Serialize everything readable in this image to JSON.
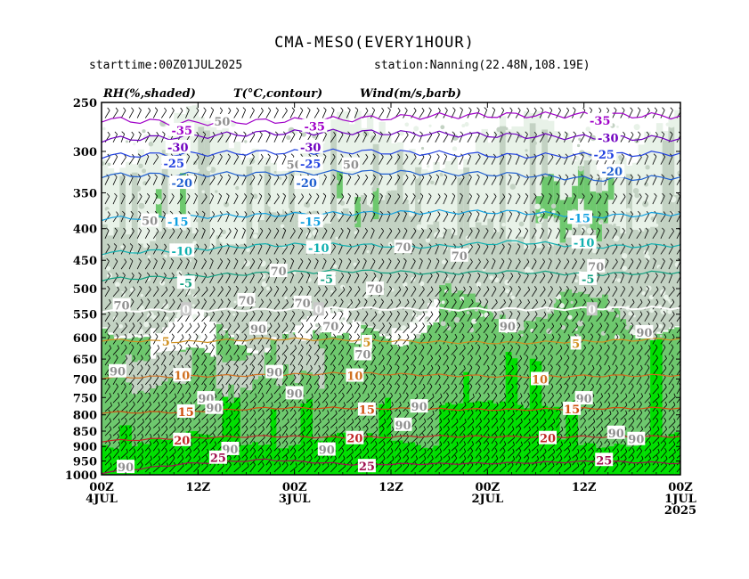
{
  "chart_data": {
    "type": "heatmap",
    "title": "CMA-MESO(EVERY1HOUR)",
    "subtitle_left": "starttime:00Z01JUL2025",
    "subtitle_right": "station:Nanning(22.48N,108.19E)",
    "panel_labels": {
      "rh": "RH(%,shaded)",
      "temp": "T(°C,contour)",
      "wind": "Wind(m/s,barb)"
    },
    "y_axis": {
      "ticks": [
        250,
        300,
        350,
        400,
        450,
        500,
        550,
        600,
        650,
        700,
        750,
        800,
        850,
        900,
        950,
        1000
      ],
      "labels": [
        "250",
        "300",
        "350",
        "400",
        "450",
        "500",
        "550",
        "600",
        "650",
        "700",
        "750",
        "800",
        "850",
        "900",
        "950",
        "1000"
      ],
      "range": [
        250,
        1000
      ],
      "inverted": true
    },
    "x_axis": {
      "direction": "time runs right-to-left",
      "ticks": [
        {
          "hours_before_end": 72,
          "label1": "00Z",
          "label2": "4JUL",
          "label3": ""
        },
        {
          "hours_before_end": 60,
          "label1": "12Z",
          "label2": "",
          "label3": ""
        },
        {
          "hours_before_end": 48,
          "label1": "00Z",
          "label2": "3JUL",
          "label3": ""
        },
        {
          "hours_before_end": 36,
          "label1": "12Z",
          "label2": "",
          "label3": ""
        },
        {
          "hours_before_end": 24,
          "label1": "00Z",
          "label2": "2JUL",
          "label3": ""
        },
        {
          "hours_before_end": 12,
          "label1": "12Z",
          "label2": "",
          "label3": ""
        },
        {
          "hours_before_end": 0,
          "label1": "00Z",
          "label2": "1JUL",
          "label3": "2025"
        }
      ]
    },
    "rh_colors": {
      "50": "#e8f2e8",
      "70": "#c3d2c3",
      "90": "#6ec86e",
      "95": "#00e000"
    },
    "temperature_contours": [
      {
        "label": "-35",
        "color": "#a000c8",
        "levels_hpa": [
          266,
          270,
          268,
          266,
          263,
          262,
          262,
          263
        ]
      },
      {
        "label": "-30",
        "color": "#7000c0",
        "levels_hpa": [
          287,
          284,
          280,
          279,
          281,
          283,
          285,
          286
        ]
      },
      {
        "label": "-25",
        "color": "#2040e0",
        "levels_hpa": [
          305,
          303,
          301,
          300,
          302,
          305,
          304,
          302
        ]
      },
      {
        "label": "-20",
        "color": "#2060d0",
        "levels_hpa": [
          328,
          327,
          326,
          324,
          325,
          327,
          333,
          330
        ]
      },
      {
        "label": "-15",
        "color": "#10a0e0",
        "levels_hpa": [
          385,
          383,
          380,
          378,
          376,
          376,
          382,
          378
        ]
      },
      {
        "label": "-10",
        "color": "#10b0b0",
        "levels_hpa": [
          438,
          433,
          425,
          425,
          428,
          420,
          428,
          425
        ]
      },
      {
        "label": "-5",
        "color": "#10a080",
        "levels_hpa": [
          483,
          478,
          472,
          468,
          472,
          470,
          474,
          470
        ]
      },
      {
        "label": "0",
        "color": "#ffffff",
        "levels_hpa": [
          543,
          542,
          541,
          538,
          540,
          540,
          538,
          537
        ]
      },
      {
        "label": "5",
        "color": "#d09020",
        "levels_hpa": [
          605,
          610,
          603,
          605,
          610,
          612,
          608,
          602
        ]
      },
      {
        "label": "10",
        "color": "#d07020",
        "levels_hpa": [
          697,
          693,
          690,
          685,
          690,
          694,
          692,
          690
        ]
      },
      {
        "label": "15",
        "color": "#d05010",
        "levels_hpa": [
          793,
          792,
          780,
          780,
          783,
          785,
          781,
          780
        ]
      },
      {
        "label": "20",
        "color": "#c02828",
        "levels_hpa": [
          882,
          872,
          866,
          871,
          866,
          868,
          868,
          867
        ]
      },
      {
        "label": "25",
        "color": "#a01050",
        "levels_hpa": [
          993,
          960,
          945,
          962,
          960,
          957,
          951,
          958
        ]
      }
    ],
    "contour_labels": [
      {
        "text": "-35",
        "color": "#a000c8",
        "h": 62,
        "p": 277
      },
      {
        "text": "-35",
        "color": "#a000c8",
        "h": 45.5,
        "p": 273
      },
      {
        "text": "-35",
        "color": "#a000c8",
        "h": 10,
        "p": 267
      },
      {
        "text": "-30",
        "color": "#7000c0",
        "h": 62.5,
        "p": 295
      },
      {
        "text": "-30",
        "color": "#7000c0",
        "h": 46,
        "p": 295
      },
      {
        "text": "-30",
        "color": "#7000c0",
        "h": 9,
        "p": 285
      },
      {
        "text": "-25",
        "color": "#2040e0",
        "h": 63,
        "p": 313
      },
      {
        "text": "-25",
        "color": "#2040e0",
        "h": 46,
        "p": 314
      },
      {
        "text": "-25",
        "color": "#2040e0",
        "h": 9.5,
        "p": 303
      },
      {
        "text": "-20",
        "color": "#2060d0",
        "h": 62,
        "p": 337
      },
      {
        "text": "-20",
        "color": "#2060d0",
        "h": 46.5,
        "p": 337
      },
      {
        "text": "-20",
        "color": "#2060d0",
        "h": 8.5,
        "p": 323
      },
      {
        "text": "-15",
        "color": "#10a0e0",
        "h": 62.5,
        "p": 389
      },
      {
        "text": "-15",
        "color": "#10a0e0",
        "h": 46,
        "p": 389
      },
      {
        "text": "-15",
        "color": "#10a0e0",
        "h": 12.5,
        "p": 384
      },
      {
        "text": "-10",
        "color": "#10b0b0",
        "h": 62,
        "p": 434
      },
      {
        "text": "-10",
        "color": "#10b0b0",
        "h": 45,
        "p": 429
      },
      {
        "text": "-10",
        "color": "#10b0b0",
        "h": 12,
        "p": 421
      },
      {
        "text": "-5",
        "color": "#10a080",
        "h": 61.5,
        "p": 489
      },
      {
        "text": "-5",
        "color": "#10a080",
        "h": 44,
        "p": 482
      },
      {
        "text": "-5",
        "color": "#10a080",
        "h": 11.5,
        "p": 482
      },
      {
        "text": "0",
        "color": "#ffffff",
        "h": 61.5,
        "p": 540
      },
      {
        "text": "0",
        "color": "#ffffff",
        "h": 45,
        "p": 540
      },
      {
        "text": "0",
        "color": "#ffffff",
        "h": 11,
        "p": 540
      },
      {
        "text": "5",
        "color": "#d09020",
        "h": 64,
        "p": 608
      },
      {
        "text": "5",
        "color": "#d09020",
        "h": 39,
        "p": 610
      },
      {
        "text": "5",
        "color": "#d09020",
        "h": 13,
        "p": 613
      },
      {
        "text": "10",
        "color": "#d07020",
        "h": 62,
        "p": 690
      },
      {
        "text": "10",
        "color": "#d07020",
        "h": 40.5,
        "p": 691
      },
      {
        "text": "10",
        "color": "#d07020",
        "h": 17.5,
        "p": 700
      },
      {
        "text": "15",
        "color": "#d05010",
        "h": 61.5,
        "p": 790
      },
      {
        "text": "15",
        "color": "#d05010",
        "h": 39,
        "p": 784
      },
      {
        "text": "15",
        "color": "#d05010",
        "h": 13.5,
        "p": 782
      },
      {
        "text": "20",
        "color": "#c02828",
        "h": 62,
        "p": 878
      },
      {
        "text": "20",
        "color": "#c02828",
        "h": 40.5,
        "p": 872
      },
      {
        "text": "20",
        "color": "#c02828",
        "h": 16.5,
        "p": 872
      },
      {
        "text": "25",
        "color": "#a01050",
        "h": 57.5,
        "p": 938
      },
      {
        "text": "25",
        "color": "#a01050",
        "h": 39,
        "p": 968
      },
      {
        "text": "25",
        "color": "#a01050",
        "h": 9.5,
        "p": 946
      }
    ],
    "rh_labels": [
      {
        "text": "50",
        "h": 57,
        "p": 268
      },
      {
        "text": "50",
        "h": 48,
        "p": 315
      },
      {
        "text": "50",
        "h": 41,
        "p": 315
      },
      {
        "text": "50",
        "h": 66,
        "p": 388
      },
      {
        "text": "70",
        "h": 69.5,
        "p": 532
      },
      {
        "text": "70",
        "h": 54,
        "p": 522
      },
      {
        "text": "70",
        "h": 50,
        "p": 468
      },
      {
        "text": "70",
        "h": 47,
        "p": 527
      },
      {
        "text": "70",
        "h": 43.5,
        "p": 575
      },
      {
        "text": "70",
        "h": 39.5,
        "p": 638
      },
      {
        "text": "70",
        "h": 38,
        "p": 500
      },
      {
        "text": "70",
        "h": 34.5,
        "p": 428
      },
      {
        "text": "70",
        "h": 27.5,
        "p": 442
      },
      {
        "text": "70",
        "h": 10.5,
        "p": 460
      },
      {
        "text": "90",
        "h": 70,
        "p": 680
      },
      {
        "text": "90",
        "h": 59,
        "p": 752
      },
      {
        "text": "90",
        "h": 56,
        "p": 908
      },
      {
        "text": "90",
        "h": 52.5,
        "p": 580
      },
      {
        "text": "90",
        "h": 50.5,
        "p": 682
      },
      {
        "text": "90",
        "h": 48,
        "p": 738
      },
      {
        "text": "90",
        "h": 44,
        "p": 910
      },
      {
        "text": "90",
        "h": 34.5,
        "p": 830
      },
      {
        "text": "90",
        "h": 32.5,
        "p": 775
      },
      {
        "text": "90",
        "h": 21.5,
        "p": 575
      },
      {
        "text": "90",
        "h": 12,
        "p": 752
      },
      {
        "text": "90",
        "h": 8,
        "p": 855
      },
      {
        "text": "90",
        "h": 5.5,
        "p": 875
      },
      {
        "text": "90",
        "h": 4.5,
        "p": 588
      },
      {
        "text": "90",
        "h": 69,
        "p": 971
      },
      {
        "text": "90",
        "h": 58,
        "p": 779
      }
    ],
    "wind_barb_directions": "westerly to south-westerly aloft, south-westerly at low levels",
    "grid": false,
    "legend": "none"
  }
}
